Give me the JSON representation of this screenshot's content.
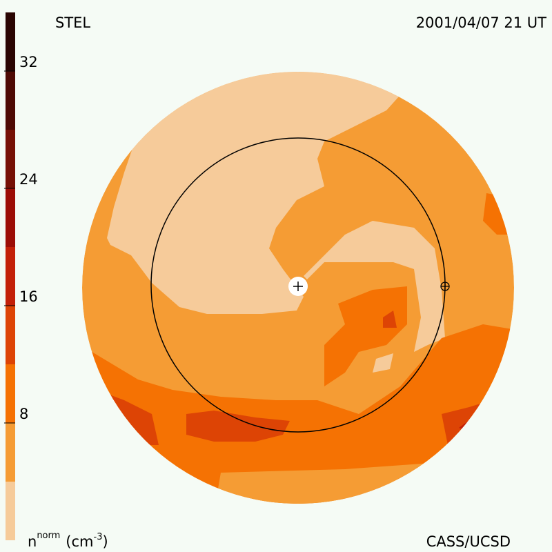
{
  "chart_data": {
    "type": "contour",
    "title": "STEL",
    "date": "2001/04/07 21 UT",
    "credit": "CASS/UCSD",
    "colorbar": {
      "label": {
        "base": "n",
        "sup": "norm",
        "unit": "(cm",
        "unit_sup": "-3",
        "close": ")"
      },
      "lim": [
        0,
        36
      ],
      "ticks": [
        8,
        16,
        24,
        32
      ],
      "bounds": [
        0,
        4,
        8,
        12,
        16,
        20,
        24,
        28,
        32,
        36
      ],
      "colors": [
        "#f6cb9a",
        "#f59c34",
        "#f57203",
        "#dd4405",
        "#c32008",
        "#9c0d06",
        "#761005",
        "#4e0a04",
        "#2a0502"
      ]
    }
  }
}
